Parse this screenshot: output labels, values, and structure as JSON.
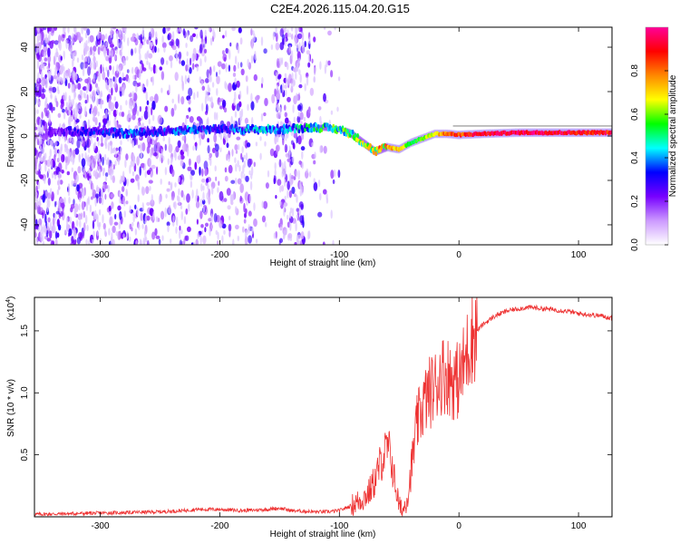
{
  "title": "C2E4.2026.115.04.20.G15",
  "chart_data": [
    {
      "type": "heatmap",
      "xlabel": "Height of straight line (km)",
      "ylabel": "Frequency (Hz)",
      "xlim": [
        -355,
        128
      ],
      "ylim": [
        -49,
        49
      ],
      "xticks": [
        -300,
        -200,
        -100,
        0,
        100
      ],
      "yticks": [
        -40,
        -20,
        0,
        20,
        40
      ],
      "colorbar": {
        "label": "Normalized spectral amplitude",
        "range": [
          0.0,
          1.0
        ],
        "ticks": [
          0.0,
          0.2,
          0.4,
          0.6,
          0.8
        ],
        "colors": [
          "#ffffff",
          "#cc99ff",
          "#7700ff",
          "#0000ff",
          "#00ffff",
          "#00ff00",
          "#ffff00",
          "#ff8800",
          "#ff0000",
          "#ff0099"
        ]
      },
      "ridge": {
        "x": [
          -340,
          -300,
          -280,
          -250,
          -220,
          -200,
          -170,
          -150,
          -120,
          -100,
          -90,
          -80,
          -70,
          -60,
          -50,
          -40,
          -30,
          -20,
          -10,
          0,
          20,
          50,
          80,
          100,
          128
        ],
        "frequency": [
          2,
          2,
          1,
          2,
          3,
          3,
          3,
          3,
          4,
          3,
          1,
          -3,
          -7,
          -5,
          -6,
          -3,
          -1,
          1,
          1,
          0.5,
          1,
          1.5,
          1.5,
          1.5,
          1.5
        ],
        "amplitude": [
          0.2,
          0.3,
          0.35,
          0.3,
          0.35,
          0.3,
          0.4,
          0.35,
          0.45,
          0.5,
          0.55,
          0.55,
          0.6,
          0.75,
          0.7,
          0.5,
          0.6,
          0.7,
          0.8,
          0.85,
          0.9,
          0.95,
          0.95,
          0.9,
          0.9
        ]
      }
    },
    {
      "type": "line",
      "title": "",
      "xlabel": "Height of straight line (km)",
      "ylabel": "SNR (10 * v/v)",
      "y_scale_label": "(x10",
      "y_scale_exponent": "4",
      "xlim": [
        -355,
        128
      ],
      "ylim": [
        0.0,
        1.77
      ],
      "xticks": [
        -300,
        -200,
        -100,
        0,
        100
      ],
      "yticks": [
        0.5,
        1.0,
        1.5
      ],
      "color": "#ee3333",
      "series": [
        {
          "name": "SNR",
          "x": [
            -355,
            -300,
            -250,
            -230,
            -220,
            -200,
            -180,
            -160,
            -150,
            -140,
            -120,
            -110,
            -100,
            -90,
            -80,
            -75,
            -70,
            -65,
            -60,
            -57,
            -55,
            -52,
            -50,
            -47,
            -45,
            -42,
            -40,
            -37,
            -35,
            -30,
            -25,
            -20,
            -15,
            -10,
            -5,
            0,
            5,
            10,
            20,
            30,
            40,
            50,
            60,
            70,
            80,
            90,
            100,
            110,
            120,
            128
          ],
          "y": [
            0.02,
            0.03,
            0.04,
            0.05,
            0.06,
            0.06,
            0.05,
            0.06,
            0.07,
            0.05,
            0.04,
            0.04,
            0.05,
            0.09,
            0.15,
            0.2,
            0.3,
            0.45,
            0.55,
            0.5,
            0.35,
            0.2,
            0.08,
            0.05,
            0.1,
            0.22,
            0.38,
            0.6,
            0.75,
            0.9,
            1.0,
            1.05,
            1.15,
            1.15,
            1.1,
            1.1,
            1.25,
            1.45,
            1.55,
            1.62,
            1.66,
            1.68,
            1.69,
            1.68,
            1.67,
            1.66,
            1.64,
            1.63,
            1.62,
            1.6
          ]
        }
      ]
    }
  ]
}
